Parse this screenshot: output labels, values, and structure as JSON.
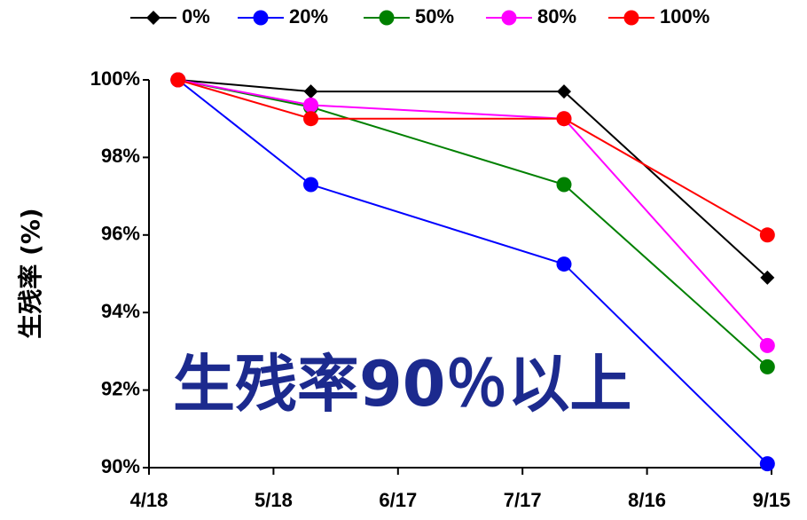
{
  "chart_data": {
    "type": "line",
    "y_label": "生残率 (%)",
    "annotation": "生残率90％以上",
    "x": [
      "4/25",
      "5/27",
      "7/27",
      "9/14"
    ],
    "xlim": [
      "4/18",
      "9/15"
    ],
    "xticks": [
      "4/18",
      "5/18",
      "6/17",
      "7/17",
      "8/16",
      "9/15"
    ],
    "ylim": [
      90,
      100
    ],
    "yticks": [
      {
        "value": 90,
        "label": "90%"
      },
      {
        "value": 92,
        "label": "92%"
      },
      {
        "value": 94,
        "label": "94%"
      },
      {
        "value": 96,
        "label": "96%"
      },
      {
        "value": 98,
        "label": "98%"
      },
      {
        "value": 100,
        "label": "100%"
      }
    ],
    "legend": "top",
    "series": [
      {
        "name": "0%",
        "color": "#000000",
        "marker": "diamond",
        "values": [
          100,
          99.7,
          99.7,
          94.9
        ]
      },
      {
        "name": "20%",
        "color": "#0000ff",
        "marker": "circle",
        "values": [
          100,
          97.3,
          95.25,
          90.1
        ]
      },
      {
        "name": "50%",
        "color": "#008000",
        "marker": "circle",
        "values": [
          100,
          99.3,
          97.3,
          92.6
        ]
      },
      {
        "name": "80%",
        "color": "#ff00ff",
        "marker": "circle",
        "values": [
          100,
          99.35,
          99.0,
          93.15
        ]
      },
      {
        "name": "100%",
        "color": "#ff0000",
        "marker": "circle",
        "values": [
          100,
          99.0,
          99.0,
          96.0
        ]
      }
    ]
  }
}
